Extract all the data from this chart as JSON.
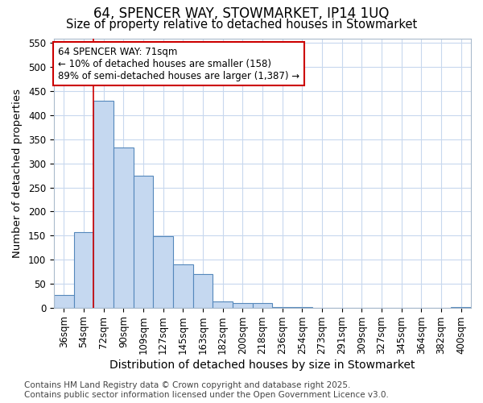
{
  "title_line1": "64, SPENCER WAY, STOWMARKET, IP14 1UQ",
  "title_line2": "Size of property relative to detached houses in Stowmarket",
  "xlabel": "Distribution of detached houses by size in Stowmarket",
  "ylabel": "Number of detached properties",
  "categories": [
    "36sqm",
    "54sqm",
    "72sqm",
    "90sqm",
    "109sqm",
    "127sqm",
    "145sqm",
    "163sqm",
    "182sqm",
    "200sqm",
    "218sqm",
    "236sqm",
    "254sqm",
    "273sqm",
    "291sqm",
    "309sqm",
    "327sqm",
    "345sqm",
    "364sqm",
    "382sqm",
    "400sqm"
  ],
  "values": [
    27,
    157,
    430,
    333,
    275,
    148,
    90,
    70,
    13,
    10,
    10,
    2,
    1,
    0,
    0,
    0,
    0,
    0,
    0,
    0,
    2
  ],
  "bar_color": "#c5d8f0",
  "bar_edge_color": "#5588bb",
  "vline_color": "#cc0000",
  "annotation_text": "64 SPENCER WAY: 71sqm\n← 10% of detached houses are smaller (158)\n89% of semi-detached houses are larger (1,387) →",
  "annotation_box_color": "#ffffff",
  "annotation_box_edge": "#cc0000",
  "ylim": [
    0,
    560
  ],
  "yticks": [
    0,
    50,
    100,
    150,
    200,
    250,
    300,
    350,
    400,
    450,
    500,
    550
  ],
  "grid_color": "#c8d8ee",
  "bg_color": "#ffffff",
  "footer_line1": "Contains HM Land Registry data © Crown copyright and database right 2025.",
  "footer_line2": "Contains public sector information licensed under the Open Government Licence v3.0.",
  "title_fontsize": 12,
  "subtitle_fontsize": 10.5,
  "tick_fontsize": 8.5,
  "xlabel_fontsize": 10,
  "ylabel_fontsize": 9.5,
  "annot_fontsize": 8.5,
  "footer_fontsize": 7.5
}
